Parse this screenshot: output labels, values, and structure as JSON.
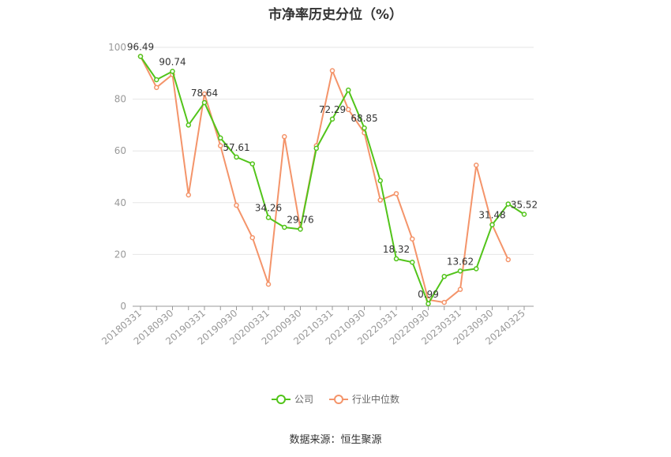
{
  "chart_data": {
    "type": "line",
    "title": "市净率历史分位（%）",
    "source": "数据来源：恒生聚源",
    "ylim": [
      0,
      100
    ],
    "yticks": [
      0,
      20,
      40,
      60,
      80,
      100
    ],
    "grid": true,
    "legend_position": "bottom",
    "xtick_labels": [
      "20180331",
      "20180930",
      "20190331",
      "20190930",
      "20200331",
      "20200930",
      "20210331",
      "20210930",
      "20220331",
      "20220930",
      "20230331",
      "20230930",
      "20240325"
    ],
    "x": [
      "20180331",
      "20180630",
      "20180930",
      "20181231",
      "20190331",
      "20190630",
      "20190930",
      "20191231",
      "20200331",
      "20200630",
      "20200930",
      "20201231",
      "20210331",
      "20210630",
      "20210930",
      "20211231",
      "20220331",
      "20220630",
      "20220930",
      "20221231",
      "20230331",
      "20230630",
      "20230930",
      "20231231",
      "20240325"
    ],
    "series": [
      {
        "name": "公司",
        "color": "#52c41a",
        "values": [
          96.49,
          87.5,
          90.74,
          70.0,
          78.64,
          65.0,
          57.61,
          55.0,
          34.26,
          30.5,
          29.76,
          61.0,
          72.29,
          83.5,
          68.85,
          48.5,
          18.32,
          17.0,
          0.99,
          11.5,
          13.62,
          14.5,
          31.48,
          39.5,
          35.52
        ],
        "labels": {
          "0": "96.49",
          "2": "90.74",
          "4": "78.64",
          "6": "57.61",
          "8": "34.26",
          "10": "29.76",
          "12": "72.29",
          "14": "68.85",
          "16": "18.32",
          "18": "0.99",
          "20": "13.62",
          "22": "31.48",
          "24": "35.52"
        }
      },
      {
        "name": "行业中位数",
        "color": "#f4946a",
        "values": [
          96.5,
          84.5,
          89.5,
          43.0,
          82.0,
          62.0,
          39.0,
          26.5,
          8.5,
          65.5,
          30.0,
          62.0,
          91.0,
          76.0,
          67.0,
          41.0,
          43.5,
          26.0,
          2.5,
          1.5,
          6.5,
          54.5,
          31.5,
          18.0,
          null
        ]
      }
    ]
  }
}
